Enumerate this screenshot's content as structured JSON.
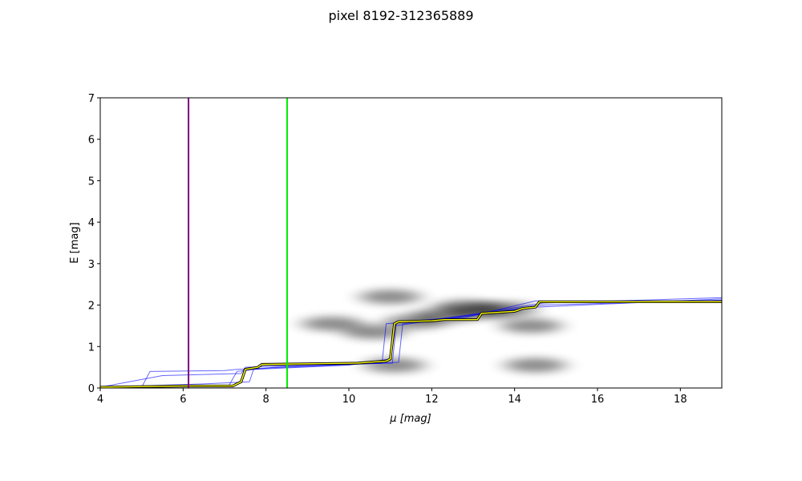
{
  "chart_data": {
    "type": "line",
    "title": "pixel 8192-312365889",
    "xlabel": "μ [mag]",
    "ylabel": "E [mag]",
    "xlim": [
      4,
      19
    ],
    "ylim": [
      0,
      7
    ],
    "xticks": [
      4,
      6,
      8,
      10,
      12,
      14,
      16,
      18
    ],
    "yticks": [
      0,
      1,
      2,
      3,
      4,
      5,
      6,
      7
    ],
    "vlines": [
      {
        "x": 6.13,
        "color": "#800080"
      },
      {
        "x": 8.51,
        "color": "#00ee00"
      }
    ],
    "density": {
      "color": "#000000",
      "x": [
        11.1,
        11.6,
        12.3,
        13.2,
        13.8,
        14.4,
        10.6,
        9.6,
        14.5,
        12.8,
        11.0
      ],
      "y": [
        0.55,
        1.6,
        1.75,
        1.85,
        1.9,
        1.5,
        1.35,
        1.55,
        0.55,
        1.95,
        2.2
      ]
    },
    "series": [
      {
        "color": "#0000ff",
        "x": [
          4,
          5.0,
          5.2,
          7.0,
          7.3,
          8.0,
          10.8,
          10.9,
          12.0,
          14.5,
          19
        ],
        "values": [
          0.02,
          0.02,
          0.4,
          0.42,
          0.45,
          0.48,
          0.6,
          1.55,
          1.65,
          1.95,
          2.15
        ]
      },
      {
        "color": "#0000ff",
        "x": [
          4,
          7.1,
          7.3,
          8.2,
          11.2,
          11.3,
          12.5,
          14.7,
          19
        ],
        "values": [
          0.02,
          0.05,
          0.4,
          0.5,
          0.62,
          1.55,
          1.7,
          2.05,
          2.18
        ]
      },
      {
        "color": "#0000ff",
        "x": [
          4,
          6.5,
          7.6,
          7.7,
          10.0,
          11.0,
          11.1,
          13.0,
          14.6,
          19
        ],
        "values": [
          0.02,
          0.1,
          0.15,
          0.45,
          0.55,
          0.7,
          1.5,
          1.75,
          2.0,
          2.12
        ]
      },
      {
        "color": "#0000ff",
        "x": [
          4,
          5.5,
          7.4,
          7.5,
          9.0,
          11.05,
          11.15,
          12.8,
          14.5,
          19
        ],
        "values": [
          0.02,
          0.3,
          0.35,
          0.5,
          0.55,
          0.6,
          1.6,
          1.7,
          2.1,
          2.1
        ]
      },
      {
        "color": "#ffff00",
        "edgecolor": "#000000",
        "x": [
          4,
          6.1,
          7.2,
          7.4,
          7.5,
          7.8,
          7.9,
          10.2,
          10.9,
          11.0,
          11.1,
          11.2,
          12.0,
          12.3,
          13.1,
          13.2,
          14.0,
          14.2,
          14.5,
          14.6,
          19
        ],
        "values": [
          0.02,
          0.05,
          0.05,
          0.15,
          0.45,
          0.5,
          0.57,
          0.6,
          0.65,
          0.7,
          1.55,
          1.6,
          1.62,
          1.65,
          1.65,
          1.8,
          1.85,
          1.92,
          1.95,
          2.08,
          2.08
        ]
      }
    ]
  }
}
